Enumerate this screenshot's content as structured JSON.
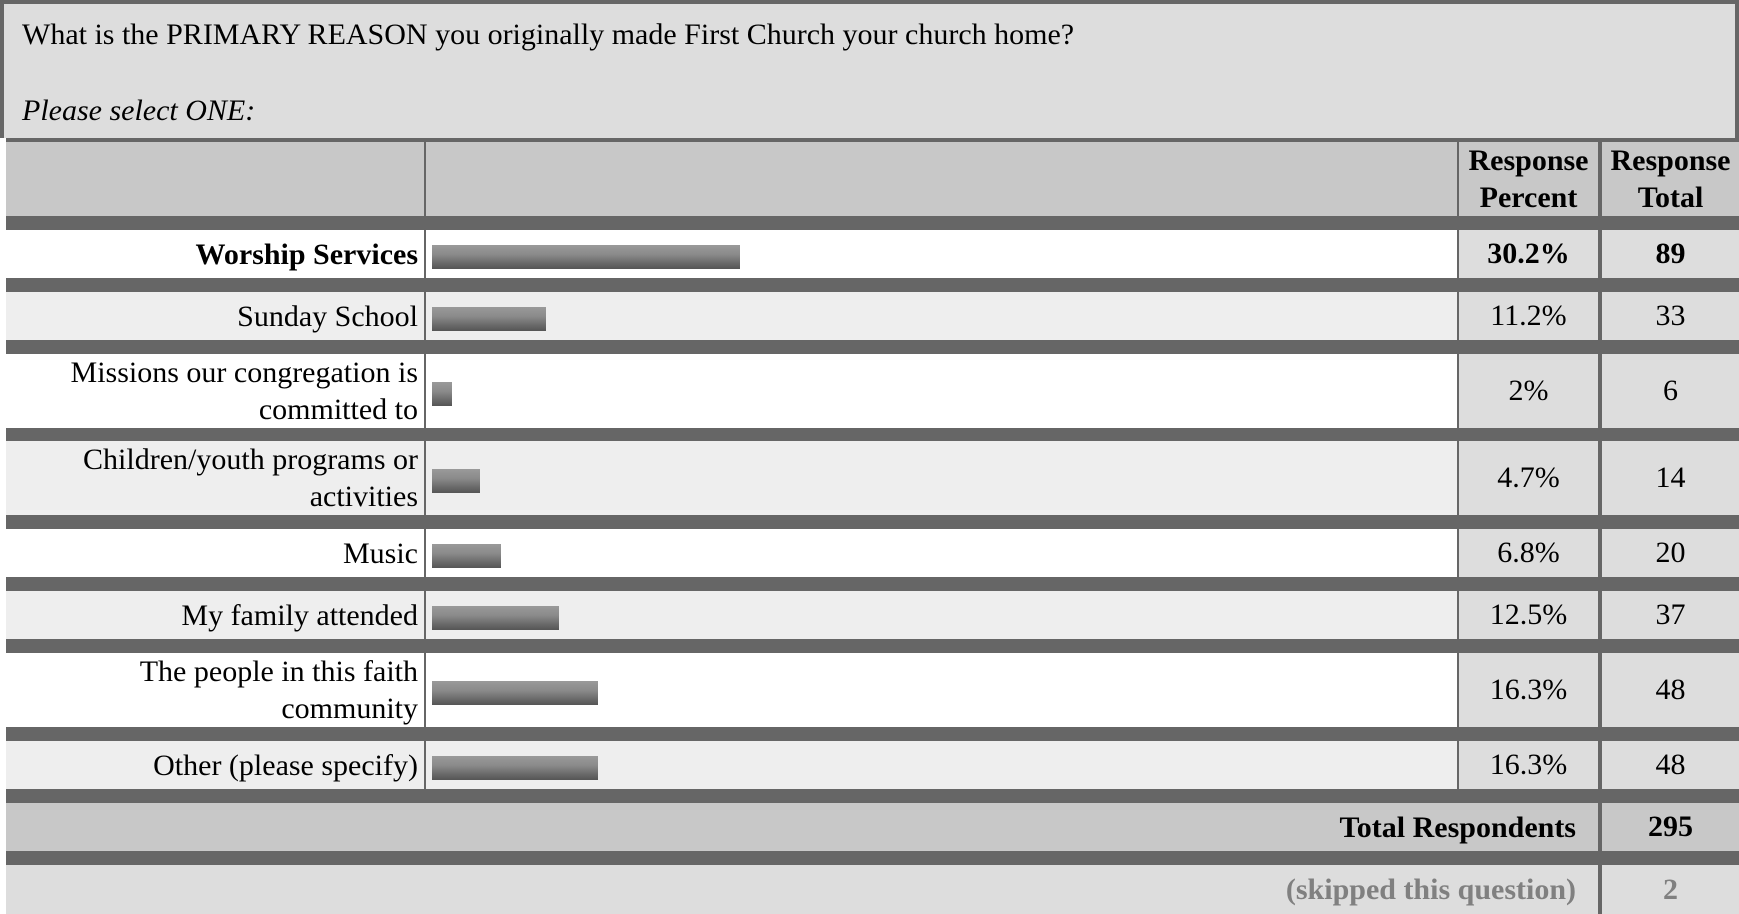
{
  "question": {
    "text": "What is the PRIMARY REASON you originally made First Church your church home?",
    "instruction": "Please select ONE:"
  },
  "headers": {
    "percent": "Response Percent",
    "total": "Response Total"
  },
  "rows": [
    {
      "label": "Worship Services",
      "percent": "30.2%",
      "total": "89",
      "highlight": true
    },
    {
      "label": "Sunday School",
      "percent": "11.2%",
      "total": "33"
    },
    {
      "label": "Missions our congregation is committed to",
      "percent": "2%",
      "total": "6"
    },
    {
      "label": "Children/youth programs or activities",
      "percent": "4.7%",
      "total": "14"
    },
    {
      "label": "Music",
      "percent": "6.8%",
      "total": "20"
    },
    {
      "label": "My family attended",
      "percent": "12.5%",
      "total": "37"
    },
    {
      "label": "The people in this faith community",
      "percent": "16.3%",
      "total": "48"
    },
    {
      "label": "Other (please specify)",
      "percent": "16.3%",
      "total": "48"
    }
  ],
  "summary": {
    "total_label": "Total Respondents",
    "total_value": "295",
    "skipped_label": "(skipped this question)",
    "skipped_value": "2"
  },
  "chart_data": {
    "type": "bar",
    "orientation": "horizontal",
    "categories": [
      "Worship Services",
      "Sunday School",
      "Missions our congregation is committed to",
      "Children/youth programs or activities",
      "Music",
      "My family attended",
      "The people in this faith community",
      "Other (please specify)"
    ],
    "values": [
      30.2,
      11.2,
      2,
      4.7,
      6.8,
      12.5,
      16.3,
      16.3
    ],
    "counts": [
      89,
      33,
      6,
      14,
      20,
      37,
      48,
      48
    ],
    "bar_scale_max": 100
  },
  "colors": {
    "frame": "#666666",
    "header_bg": "#c8c8c8",
    "question_bg": "#dddddd",
    "row_white": "#ffffff",
    "row_alt": "#eeeeee",
    "value_col_bg": "#dddddd",
    "muted_text": "#808080"
  }
}
